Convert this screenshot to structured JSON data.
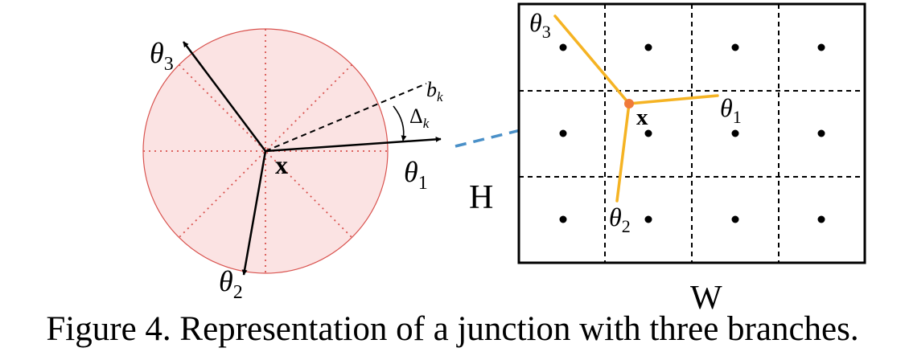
{
  "left_panel": {
    "theta3": {
      "sym": "θ",
      "sub": "3"
    },
    "theta1": {
      "sym": "θ",
      "sub": "1"
    },
    "theta2": {
      "sym": "θ",
      "sub": "2"
    },
    "bk": {
      "sym": "b",
      "sub": "k"
    },
    "delta_k": {
      "sym": "Δ",
      "sub": "k"
    },
    "x": "x"
  },
  "right_panel": {
    "theta3": {
      "sym": "θ",
      "sub": "3"
    },
    "theta1": {
      "sym": "θ",
      "sub": "1"
    },
    "theta2": {
      "sym": "θ",
      "sub": "2"
    },
    "x": "x",
    "height_label": "H",
    "width_label": "W"
  },
  "caption": "Figure 4. Representation of a junction with three branches.",
  "colors": {
    "disc_fill": "#fbe3e3",
    "disc_stroke": "#d9534f",
    "disc_dots": "#d9534f",
    "branch_orange": "#f5b323",
    "junction_point": "#f07a3a",
    "link_dash": "#4a90c8"
  }
}
